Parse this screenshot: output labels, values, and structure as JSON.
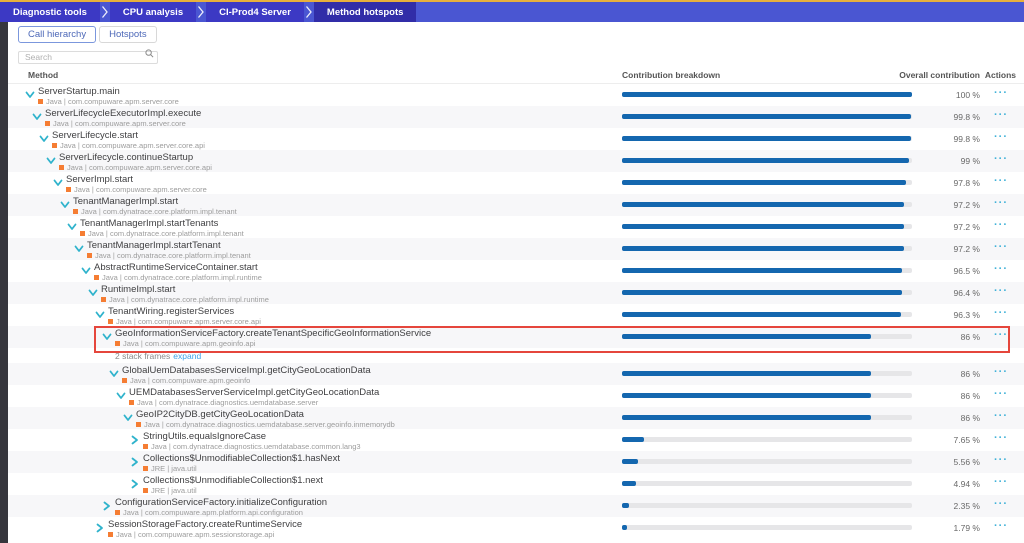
{
  "topbar": {
    "breadcrumbs": [
      {
        "label": "Diagnostic tools",
        "active": false
      },
      {
        "label": "CPU analysis",
        "active": false
      },
      {
        "label": "CI-Prod4 Server",
        "active": false
      },
      {
        "label": "Method hotspots",
        "active": true
      }
    ]
  },
  "tabs": [
    {
      "label": "Call hierarchy",
      "active": true
    },
    {
      "label": "Hotspots",
      "active": false
    }
  ],
  "search": {
    "placeholder": "Search"
  },
  "table": {
    "headers": {
      "method": "Method",
      "contribution": "Contribution breakdown",
      "overall": "Overall contribution",
      "actions": "Actions"
    },
    "actions_icon": "···"
  },
  "rows": [
    {
      "type": "method",
      "name": "ServerStartup.main",
      "tech": "Java",
      "package": "com.compuware.apm.server.core",
      "level": 0,
      "state": "expanded",
      "overall": "100 %",
      "bar_pct": 100,
      "highlighted": false
    },
    {
      "type": "method",
      "name": "ServerLifecycleExecutorImpl.execute",
      "tech": "Java",
      "package": "com.compuware.apm.server.core",
      "level": 1,
      "state": "expanded",
      "overall": "99.8 %",
      "bar_pct": 99.8,
      "highlighted": false
    },
    {
      "type": "method",
      "name": "ServerLifecycle.start",
      "tech": "Java",
      "package": "com.compuware.apm.server.core.api",
      "level": 2,
      "state": "expanded",
      "overall": "99.8 %",
      "bar_pct": 99.8,
      "highlighted": false
    },
    {
      "type": "method",
      "name": "ServerLifecycle.continueStartup",
      "tech": "Java",
      "package": "com.compuware.apm.server.core.api",
      "level": 3,
      "state": "expanded",
      "overall": "99 %",
      "bar_pct": 99,
      "highlighted": false
    },
    {
      "type": "method",
      "name": "ServerImpl.start",
      "tech": "Java",
      "package": "com.compuware.apm.server.core",
      "level": 4,
      "state": "expanded",
      "overall": "97.8 %",
      "bar_pct": 97.8,
      "highlighted": false
    },
    {
      "type": "method",
      "name": "TenantManagerImpl.start",
      "tech": "Java",
      "package": "com.dynatrace.core.platform.impl.tenant",
      "level": 5,
      "state": "expanded",
      "overall": "97.2 %",
      "bar_pct": 97.2,
      "highlighted": false
    },
    {
      "type": "method",
      "name": "TenantManagerImpl.startTenants",
      "tech": "Java",
      "package": "com.dynatrace.core.platform.impl.tenant",
      "level": 6,
      "state": "expanded",
      "overall": "97.2 %",
      "bar_pct": 97.2,
      "highlighted": false
    },
    {
      "type": "method",
      "name": "TenantManagerImpl.startTenant",
      "tech": "Java",
      "package": "com.dynatrace.core.platform.impl.tenant",
      "level": 7,
      "state": "expanded",
      "overall": "97.2 %",
      "bar_pct": 97.2,
      "highlighted": false
    },
    {
      "type": "method",
      "name": "AbstractRuntimeServiceContainer.start",
      "tech": "Java",
      "package": "com.dynatrace.core.platform.impl.runtime",
      "level": 8,
      "state": "expanded",
      "overall": "96.5 %",
      "bar_pct": 96.5,
      "highlighted": false
    },
    {
      "type": "method",
      "name": "RuntimeImpl.start",
      "tech": "Java",
      "package": "com.dynatrace.core.platform.impl.runtime",
      "level": 9,
      "state": "expanded",
      "overall": "96.4 %",
      "bar_pct": 96.4,
      "highlighted": false
    },
    {
      "type": "method",
      "name": "TenantWiring.registerServices",
      "tech": "Java",
      "package": "com.compuware.apm.server.core.api",
      "level": 10,
      "state": "expanded",
      "overall": "96.3 %",
      "bar_pct": 96.3,
      "highlighted": false
    },
    {
      "type": "method",
      "name": "GeoInformationServiceFactory.createTenantSpecificGeoInformationService",
      "tech": "Java",
      "package": "com.compuware.apm.geoinfo.api",
      "level": 11,
      "state": "expanded",
      "overall": "86 %",
      "bar_pct": 86,
      "highlighted": true
    },
    {
      "type": "note",
      "text": "2 stack frames",
      "link": "expand",
      "level": 11
    },
    {
      "type": "method",
      "name": "GlobalUemDatabasesServiceImpl.getCityGeoLocationData",
      "tech": "Java",
      "package": "com.compuware.apm.geoinfo",
      "level": 12,
      "state": "expanded",
      "overall": "86 %",
      "bar_pct": 86,
      "highlighted": false
    },
    {
      "type": "method",
      "name": "UEMDatabasesServerServiceImpl.getCityGeoLocationData",
      "tech": "Java",
      "package": "com.dynatrace.diagnostics.uemdatabase.server",
      "level": 13,
      "state": "expanded",
      "overall": "86 %",
      "bar_pct": 86,
      "highlighted": false
    },
    {
      "type": "method",
      "name": "GeoIP2CityDB.getCityGeoLocationData",
      "tech": "Java",
      "package": "com.dynatrace.diagnostics.uemdatabase.server.geoinfo.inmemorydb",
      "level": 14,
      "state": "expanded",
      "overall": "86 %",
      "bar_pct": 86,
      "highlighted": false
    },
    {
      "type": "method",
      "name": "StringUtils.equalsIgnoreCase",
      "tech": "Java",
      "package": "com.dynatrace.diagnostics.uemdatabase.common.lang3",
      "level": 15,
      "state": "collapsed",
      "overall": "7.65 %",
      "bar_pct": 7.65,
      "highlighted": false
    },
    {
      "type": "method",
      "name": "Collections$UnmodifiableCollection$1.hasNext",
      "tech": "JRE",
      "package": "java.util",
      "level": 15,
      "state": "collapsed",
      "overall": "5.56 %",
      "bar_pct": 5.56,
      "highlighted": false
    },
    {
      "type": "method",
      "name": "Collections$UnmodifiableCollection$1.next",
      "tech": "JRE",
      "package": "java.util",
      "level": 15,
      "state": "collapsed",
      "overall": "4.94 %",
      "bar_pct": 4.94,
      "highlighted": false
    },
    {
      "type": "method",
      "name": "ConfigurationServiceFactory.initializeConfiguration",
      "tech": "Java",
      "package": "com.compuware.apm.platform.api.configuration",
      "level": 11,
      "state": "collapsed",
      "overall": "2.35 %",
      "bar_pct": 2.35,
      "highlighted": false
    },
    {
      "type": "method",
      "name": "SessionStorageFactory.createRuntimeService",
      "tech": "Java",
      "package": "com.compuware.apm.sessionstorage.api",
      "level": 10,
      "state": "collapsed",
      "overall": "1.79 %",
      "bar_pct": 1.79,
      "highlighted": false
    }
  ],
  "colors": {
    "topbar_accent": "#e7b03c",
    "topbar_bg": "#4a56d2",
    "crumb_bg": "#3c39c4",
    "crumb_active_bg": "#312da8",
    "left_strip": "#36363d",
    "bar_fill": "#1467af",
    "bar_track": "#e6e6e8",
    "tech_badge": "#f57d33",
    "chevron": "#2fb3cc",
    "highlight_border": "#e5463c",
    "actions": "#3fb1d8",
    "row_stripe": "#f7f7f9"
  }
}
